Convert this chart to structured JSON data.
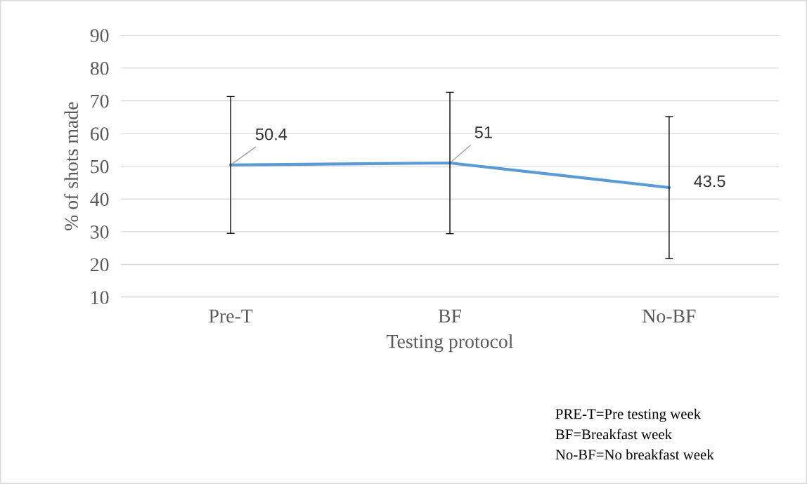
{
  "chart_data": {
    "type": "line",
    "xlabel": "Testing protocol",
    "ylabel": "% of shots made",
    "categories": [
      "Pre-T",
      "BF",
      "No-BF"
    ],
    "series": [
      {
        "color": "#5b9bd5",
        "values": [
          50.4,
          51,
          43.5
        ],
        "errors": [
          20.9,
          21.6,
          21.7
        ]
      }
    ],
    "data_labels": true,
    "ylim": [
      10,
      90
    ],
    "yticks": [
      10,
      20,
      30,
      40,
      50,
      60,
      70,
      80,
      90
    ],
    "grid": "y",
    "marker": "none",
    "line_style": "solid",
    "legend": false,
    "annotations": [
      "PRE-T=Pre testing week",
      "BF=Breakfast week",
      "No-BF=No breakfast week"
    ]
  }
}
